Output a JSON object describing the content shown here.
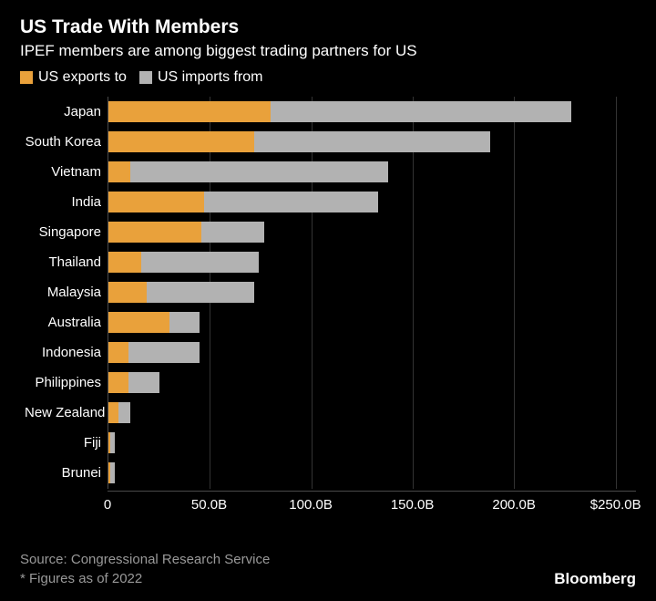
{
  "title": "US Trade With Members",
  "subtitle": "IPEF members are among biggest trading partners for US",
  "legend": {
    "exports": {
      "label": "US exports to",
      "color": "#e9a13b"
    },
    "imports": {
      "label": "US imports from",
      "color": "#b2b2b2"
    }
  },
  "chart": {
    "type": "bar",
    "orientation": "horizontal",
    "stacked": true,
    "background_color": "#000000",
    "grid_color": "#333333",
    "axis_color": "#4a4a4a",
    "text_color": "#ffffff",
    "label_fontsize": 15,
    "xmax": 260,
    "xticks": [
      {
        "value": 0,
        "label": "0"
      },
      {
        "value": 50,
        "label": "50.0B"
      },
      {
        "value": 100,
        "label": "100.0B"
      },
      {
        "value": 150,
        "label": "150.0B"
      },
      {
        "value": 200,
        "label": "200.0B"
      },
      {
        "value": 250,
        "label": "$250.0B"
      }
    ],
    "rows": [
      {
        "label": "Japan",
        "exports": 80,
        "imports": 148
      },
      {
        "label": "South Korea",
        "exports": 72,
        "imports": 116
      },
      {
        "label": "Vietnam",
        "exports": 11,
        "imports": 127
      },
      {
        "label": "India",
        "exports": 47,
        "imports": 86
      },
      {
        "label": "Singapore",
        "exports": 46,
        "imports": 31
      },
      {
        "label": "Thailand",
        "exports": 16,
        "imports": 58
      },
      {
        "label": "Malaysia",
        "exports": 19,
        "imports": 53
      },
      {
        "label": "Australia",
        "exports": 30,
        "imports": 15
      },
      {
        "label": "Indonesia",
        "exports": 10,
        "imports": 35
      },
      {
        "label": "Philippines",
        "exports": 10,
        "imports": 15
      },
      {
        "label": "New Zealand",
        "exports": 5,
        "imports": 6
      },
      {
        "label": "Fiji",
        "exports": 1,
        "imports": 2
      },
      {
        "label": "Brunei",
        "exports": 1,
        "imports": 2
      }
    ]
  },
  "source_line1": "Source: Congressional Research Service",
  "source_line2": "* Figures as of 2022",
  "brand": "Bloomberg"
}
